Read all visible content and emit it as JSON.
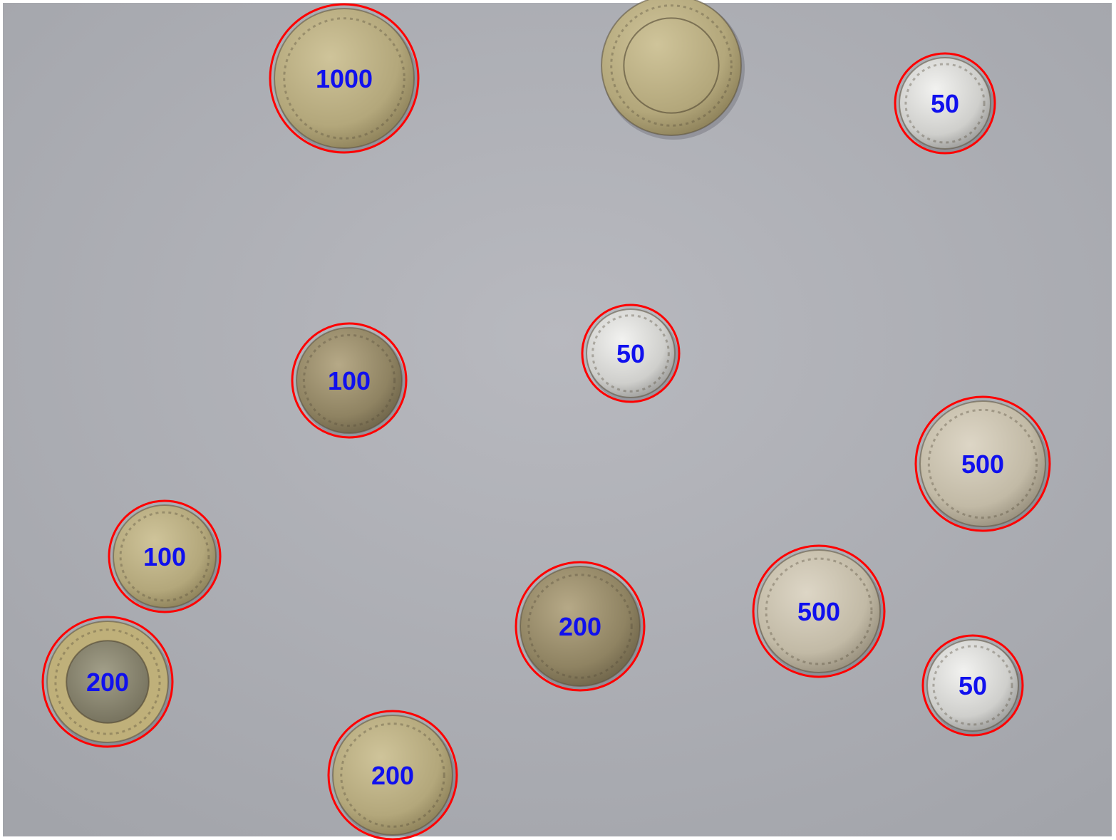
{
  "colors": {
    "background": "#a9abb1",
    "detection_ring": "#ff0000",
    "label": "#1010ee",
    "gold_coin": "#b9ad7f",
    "gold_coin_dark": "#8b7f58",
    "silver_coin": "#d8d8d6",
    "silver_coin_dark": "#9d9d9d",
    "bronze_coin": "#9a8d6a",
    "bimetal_ring": "#bfb07a",
    "bimetal_center": "#8e8e78"
  },
  "coins": [
    {
      "label": "1000",
      "metal": "gold",
      "detected": true
    },
    {
      "label": "",
      "metal": "gold_bimetal",
      "detected": false
    },
    {
      "label": "50",
      "metal": "silver",
      "detected": true
    },
    {
      "label": "100",
      "metal": "bronze",
      "detected": true
    },
    {
      "label": "50",
      "metal": "silver",
      "detected": true
    },
    {
      "label": "500",
      "metal": "silver_warm",
      "detected": true
    },
    {
      "label": "100",
      "metal": "gold",
      "detected": true
    },
    {
      "label": "200",
      "metal": "bronze",
      "detected": true
    },
    {
      "label": "500",
      "metal": "silver_warm",
      "detected": true
    },
    {
      "label": "50",
      "metal": "silver",
      "detected": true
    },
    {
      "label": "200",
      "metal": "bimetal",
      "detected": true
    },
    {
      "label": "200",
      "metal": "gold",
      "detected": true
    }
  ]
}
